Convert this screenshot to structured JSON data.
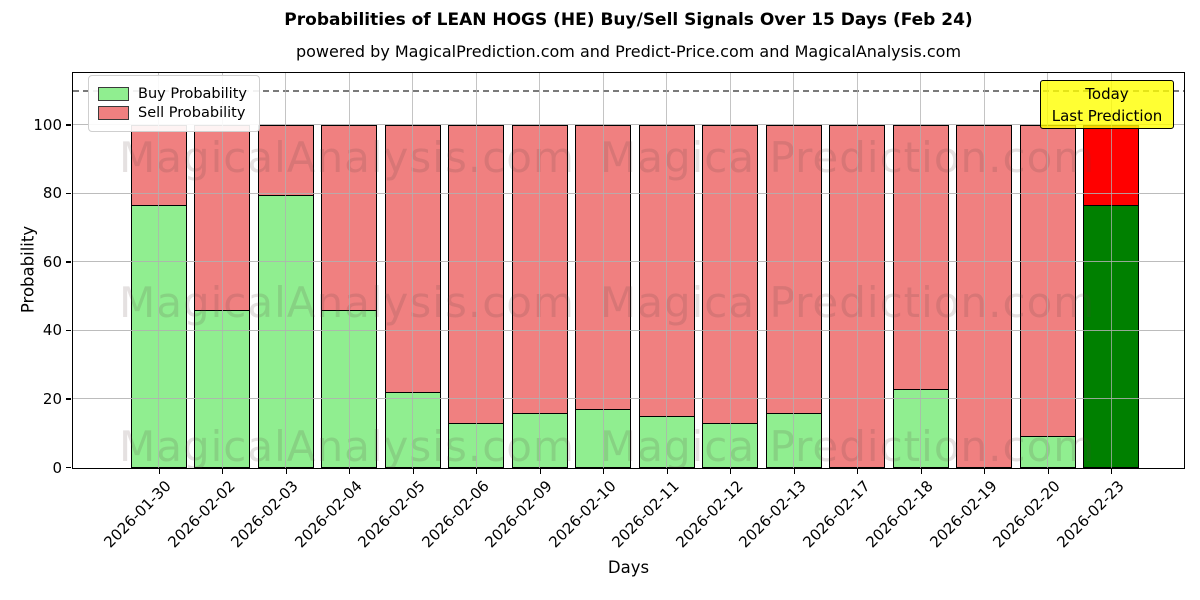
{
  "title": "Probabilities of LEAN HOGS (HE) Buy/Sell Signals Over 15 Days (Feb 24)",
  "subtitle": "powered by MagicalPrediction.com and Predict-Price.com and MagicalAnalysis.com",
  "legend": {
    "items": [
      {
        "label": "Buy Probability",
        "color": "#90EE90"
      },
      {
        "label": "Sell Probability",
        "color": "#F08080"
      }
    ]
  },
  "annotation": {
    "lines": [
      "Today",
      "Last Prediction"
    ],
    "bg_color": "#FFFF00"
  },
  "watermarks": {
    "left_text": "MagicalAnalysis.com",
    "right_text": "Magica Prediction.com",
    "rows": 3
  },
  "axes": {
    "xlabel": "Days",
    "ylabel": "Probability",
    "yticks": [
      0,
      20,
      40,
      60,
      80,
      100
    ]
  },
  "colors": {
    "buy": "#90EE90",
    "sell": "#F08080",
    "buy_today": "#008000",
    "sell_today": "#FF0000",
    "grid": "#b0b0b0",
    "guide_dash": "#7a7a7a",
    "annotation_bg": "#FFFF00"
  },
  "chart_data": {
    "type": "bar",
    "stacked": true,
    "title": "Probabilities of LEAN HOGS (HE) Buy/Sell Signals Over 15 Days (Feb 24)",
    "xlabel": "Days",
    "ylabel": "Probability",
    "categories": [
      "2026-01-30",
      "2026-02-02",
      "2026-02-03",
      "2026-02-04",
      "2026-02-05",
      "2026-02-06",
      "2026-02-09",
      "2026-02-10",
      "2026-02-11",
      "2026-02-12",
      "2026-02-13",
      "2026-02-17",
      "2026-02-18",
      "2026-02-19",
      "2026-02-20",
      "2026-02-23"
    ],
    "series": [
      {
        "name": "Buy Probability",
        "color": "#90EE90",
        "today_color": "#008000",
        "values": [
          77,
          46,
          80,
          46,
          22,
          13,
          16,
          17,
          15,
          13,
          16,
          0,
          23,
          0,
          9,
          77
        ]
      },
      {
        "name": "Sell Probability",
        "color": "#F08080",
        "today_color": "#FF0000",
        "values": [
          23,
          54,
          20,
          54,
          78,
          87,
          84,
          83,
          85,
          87,
          84,
          100,
          77,
          100,
          91,
          23
        ]
      }
    ],
    "today_index": 15,
    "ylim": [
      0,
      115
    ],
    "yticks": [
      0,
      20,
      40,
      60,
      80,
      100
    ],
    "dashed_guide_y": 110,
    "grid": true,
    "legend_position": "upper left"
  }
}
